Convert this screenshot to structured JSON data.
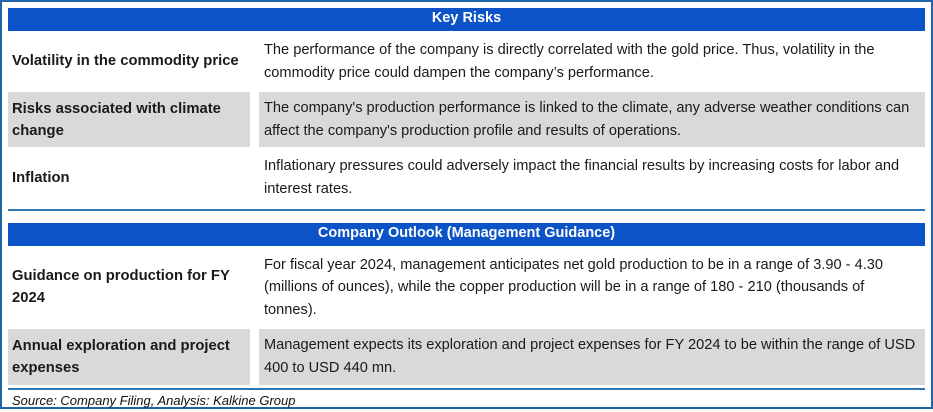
{
  "colors": {
    "header_bg": "#0c53c8",
    "header_text": "#ffffff",
    "row_alt_bg": "#d9d9d9",
    "table_rule_blue": "#2e75b6",
    "outer_border_blue": "#2164a8",
    "body_text": "#1a1a1a"
  },
  "tables": [
    {
      "title": "Key Risks",
      "rows": [
        {
          "label": "Volatility in the commodity price",
          "description": "The performance of the company is directly correlated with the gold price. Thus, volatility in the commodity price could dampen the company’s performance."
        },
        {
          "label": "Risks associated with climate change",
          "description": "The company's production performance is linked to the climate, any adverse weather conditions can affect the company's production profile and results of operations."
        },
        {
          "label": "Inflation",
          "description": "Inflationary pressures could adversely impact the financial results by increasing costs for labor and interest rates."
        }
      ]
    },
    {
      "title": "Company Outlook (Management Guidance)",
      "rows": [
        {
          "label": "Guidance on production for FY 2024",
          "description": "For fiscal year 2024, management anticipates net gold production to be in a range of 3.90 - 4.30 (millions of ounces), while the copper production will be in a range of 180 - 210 (thousands of tonnes)."
        },
        {
          "label": "Annual exploration and project expenses",
          "description": "Management expects its exploration and project expenses for FY 2024 to be within the range of USD 400 to USD 440 mn."
        }
      ]
    }
  ],
  "footer": {
    "source": "Source: Company Filing, Analysis: Kalkine Group"
  }
}
